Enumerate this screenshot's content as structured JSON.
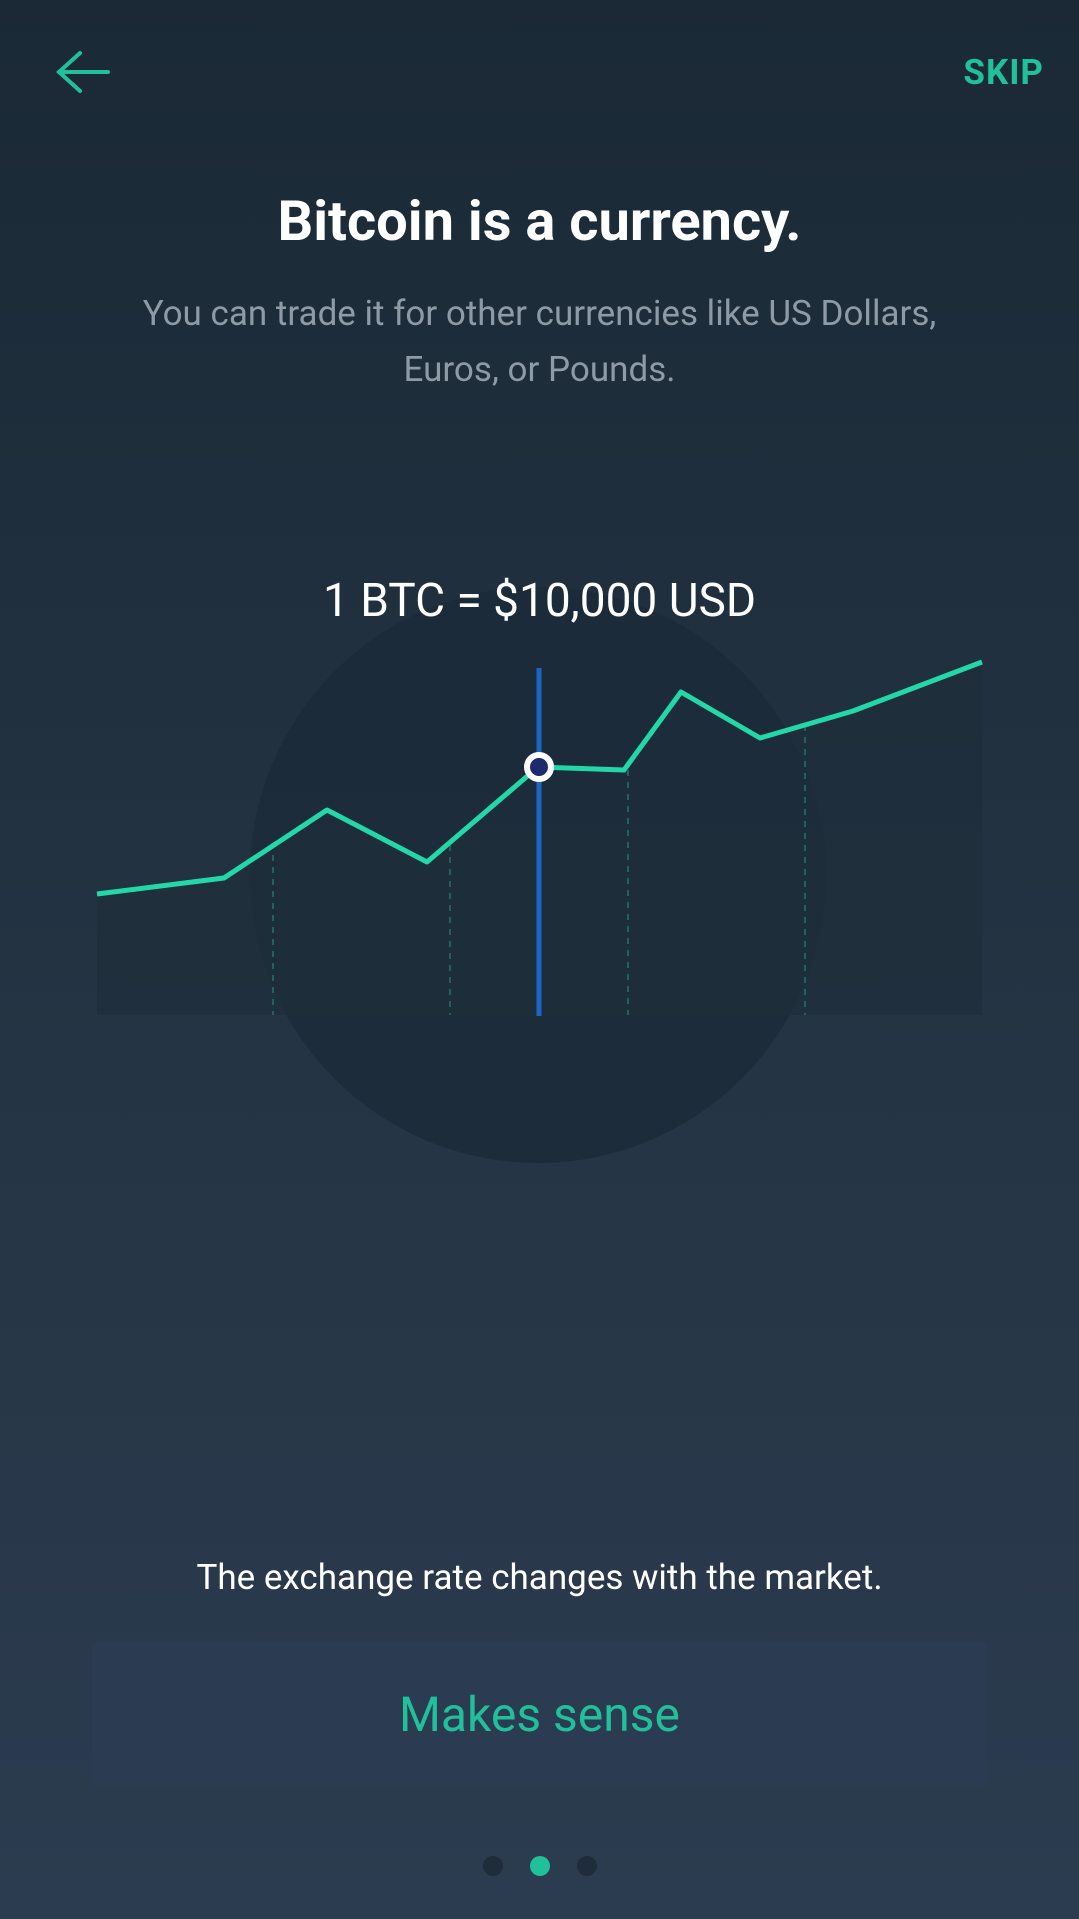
{
  "header": {
    "skip": "SKIP"
  },
  "title": "Bitcoin is a currency.",
  "subtitle": "You can trade it for other currencies like US Dollars, Euros, or Pounds.",
  "rate": "1 BTC = $10,000 USD",
  "caption": "The exchange rate changes with the market.",
  "button": "Makes sense"
}
